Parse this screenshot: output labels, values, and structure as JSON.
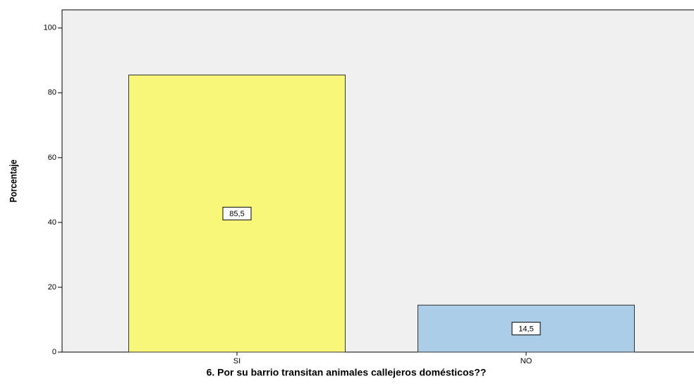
{
  "chart_data": {
    "type": "bar",
    "x_label": "6. Por su barrio transitan animales callejeros domésticos??",
    "y_label": "Porcentaje",
    "categories": [
      "SI",
      "NO"
    ],
    "values": [
      85.5,
      14.5
    ],
    "value_labels": [
      "85,5",
      "14,5"
    ],
    "colors": [
      "#f9f77a",
      "#abcde8"
    ],
    "ylim": [
      0,
      105.6
    ],
    "yticks": [
      0,
      20,
      40,
      60,
      80,
      100
    ]
  }
}
